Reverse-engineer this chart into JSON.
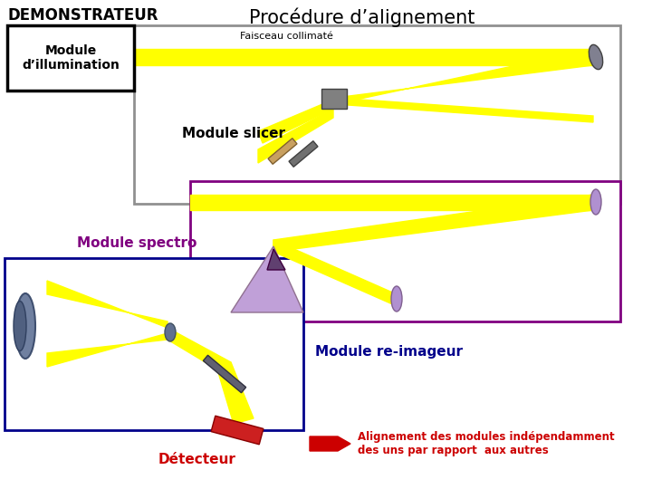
{
  "title": "Procédure d’alignement",
  "title_demonstrateur": "DEMONSTRATEUR",
  "bg_color": "#ffffff",
  "module_illumination_label": "Module\nd’illumination",
  "faisceau_label": "Faisceau collimaté",
  "module_slicer_label": "Module slicer",
  "module_spectro_label": "Module spectro",
  "module_reimageur_label": "Module re-imageur",
  "detecteur_label": "Détecteur",
  "alignement_label": "Alignement des modules indépendamment\ndes uns par rapport  aux autres",
  "box1_edgecolor": "#909090",
  "box2_edgecolor": "#800080",
  "box3_edgecolor": "#00008b",
  "yellow": "#ffff00",
  "gray_mirror": "#808090",
  "purple_mirror": "#b090d0",
  "orange_mirror": "#c8a060",
  "dark_gray_mirror": "#606070",
  "red_detector": "#cc2020",
  "prism_color": "#b090d0",
  "prism_dark": "#604060",
  "lens_color": "#7080a0",
  "lens_dark": "#506080"
}
